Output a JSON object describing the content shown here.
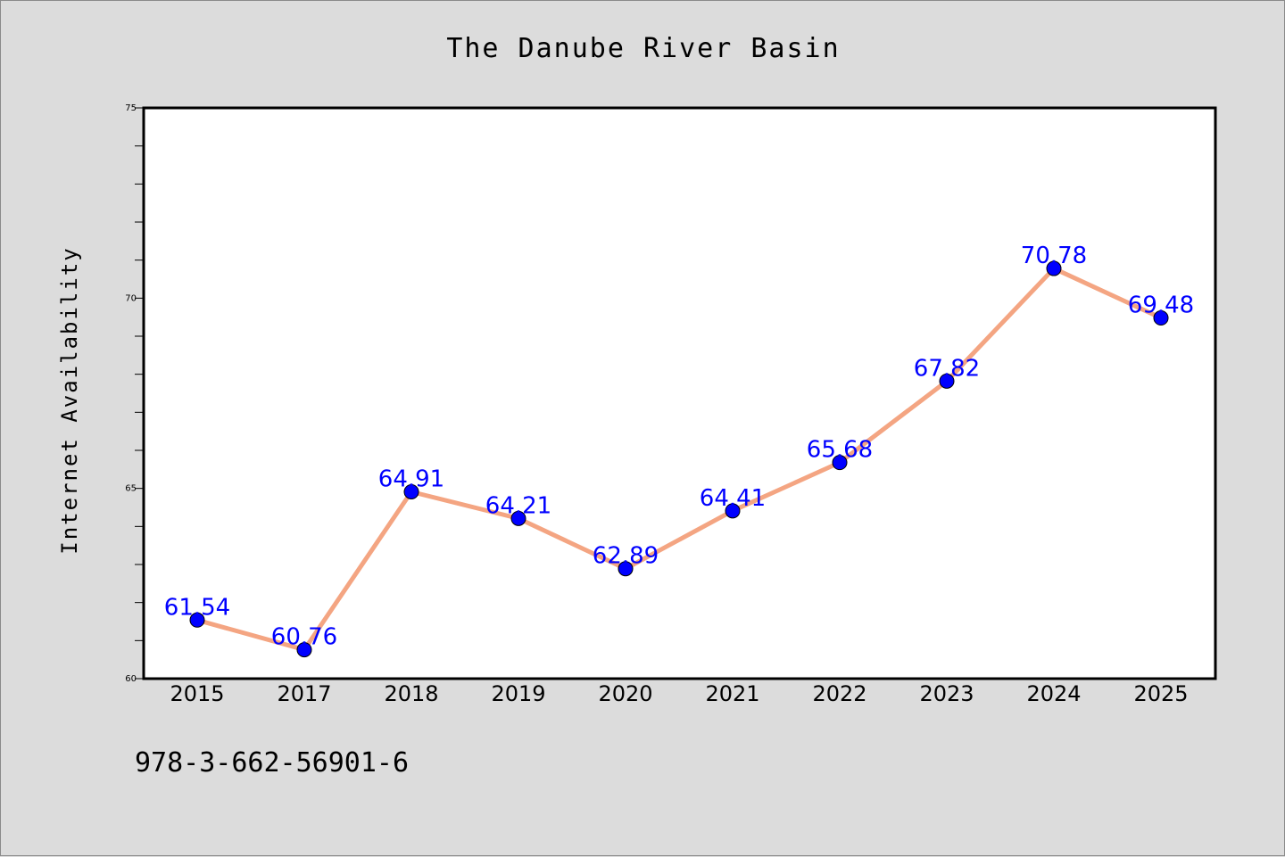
{
  "chart_data": {
    "type": "line",
    "title": "The Danube River Basin",
    "xlabel": "",
    "ylabel": "Internet Availability",
    "categories": [
      "2015",
      "2017",
      "2018",
      "2019",
      "2020",
      "2021",
      "2022",
      "2023",
      "2024",
      "2025"
    ],
    "series": [
      {
        "values": [
          61.54,
          60.76,
          64.91,
          64.21,
          62.89,
          64.41,
          65.68,
          67.82,
          70.78,
          69.48
        ],
        "labels": [
          "61.54",
          "60.76",
          "64.91",
          "64.21",
          "62.89",
          "64.41",
          "65.68",
          "67.82",
          "70.78",
          "69.48"
        ],
        "line_color": "#f4a582",
        "marker_color": "#0000ff"
      }
    ],
    "ylim": [
      60,
      75
    ],
    "yticks": [
      "60",
      "65",
      "70",
      "75"
    ],
    "yminor_step": 1,
    "grid": false,
    "legend": "none",
    "label_color": "#0000ff"
  },
  "footnote": "978-3-662-56901-6"
}
